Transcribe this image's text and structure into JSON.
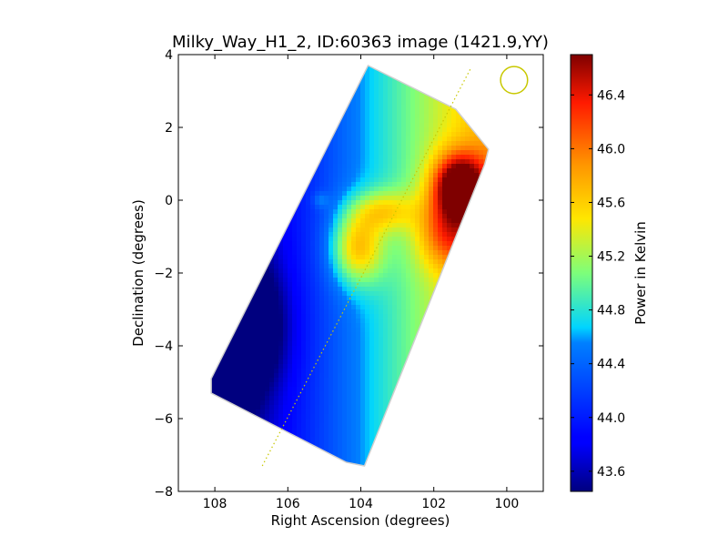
{
  "chart_data": {
    "type": "heatmap",
    "title": "Milky_Way_H1_2, ID:60363 image (1421.9,YY)",
    "xlabel": "Right Ascension (degrees)",
    "ylabel": "Declination (degrees)",
    "xlim": [
      109,
      99
    ],
    "ylim": [
      -8,
      4
    ],
    "x_ticks": [
      108,
      106,
      104,
      102,
      100
    ],
    "x_tick_labels": [
      "108",
      "106",
      "104",
      "102",
      "100"
    ],
    "y_ticks": [
      4,
      2,
      0,
      -2,
      -4,
      -6,
      -8
    ],
    "y_tick_labels": [
      "4",
      "2",
      "0",
      "−2",
      "−4",
      "−6",
      "−8"
    ],
    "grid": false,
    "colormap": "jet",
    "colorbar": {
      "label": "Power in Kelvin",
      "range": [
        43.45,
        46.7
      ],
      "ticks": [
        43.6,
        44.0,
        44.4,
        44.8,
        45.2,
        45.6,
        46.0,
        46.4
      ],
      "tick_labels": [
        "43.6",
        "44.0",
        "44.4",
        "44.8",
        "45.2",
        "45.6",
        "46.0",
        "46.4"
      ]
    },
    "coverage_outline": [
      [
        103.8,
        3.7
      ],
      [
        101.4,
        2.5
      ],
      [
        100.5,
        1.4
      ],
      [
        100.6,
        1.0
      ],
      [
        103.9,
        -7.3
      ],
      [
        104.4,
        -7.2
      ],
      [
        108.1,
        -5.3
      ],
      [
        108.1,
        -4.9
      ]
    ],
    "center_line": [
      [
        106.7,
        -7.3
      ],
      [
        101.0,
        3.6
      ]
    ],
    "beam": {
      "ra": 99.8,
      "dec": 3.3,
      "radius_deg": 0.37,
      "color": "#c8c800"
    },
    "field_model": {
      "gradient_base": 44.4,
      "gradient_ref_ra": 104.5,
      "gradient_per_deg": 0.35,
      "components": [
        {
          "ra": 101.3,
          "dec": 0.4,
          "amp": 1.8,
          "sigma_ra": 0.5,
          "sigma_dec": 0.6
        },
        {
          "ra": 101.6,
          "dec": -0.9,
          "amp": 0.9,
          "sigma_ra": 0.6,
          "sigma_dec": 0.7
        },
        {
          "ra": 104.1,
          "dec": -1.3,
          "amp": 1.1,
          "sigma_ra": 0.5,
          "sigma_dec": 0.7
        },
        {
          "ra": 103.4,
          "dec": -0.3,
          "amp": 0.7,
          "sigma_ra": 0.6,
          "sigma_dec": 0.4
        },
        {
          "ra": 107.2,
          "dec": -3.5,
          "amp": -0.8,
          "sigma_ra": 0.8,
          "sigma_dec": 1.2
        },
        {
          "ra": 105.1,
          "dec": 0.0,
          "amp": 0.3,
          "sigma_ra": 0.15,
          "sigma_dec": 0.15
        }
      ]
    }
  }
}
